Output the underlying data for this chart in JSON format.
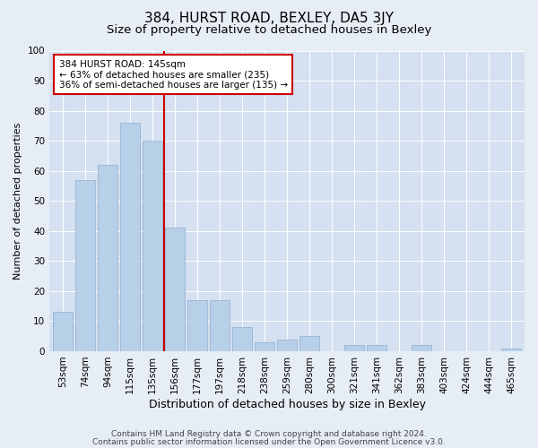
{
  "title": "384, HURST ROAD, BEXLEY, DA5 3JY",
  "subtitle": "Size of property relative to detached houses in Bexley",
  "xlabel": "Distribution of detached houses by size in Bexley",
  "ylabel": "Number of detached properties",
  "categories": [
    "53sqm",
    "74sqm",
    "94sqm",
    "115sqm",
    "135sqm",
    "156sqm",
    "177sqm",
    "197sqm",
    "218sqm",
    "238sqm",
    "259sqm",
    "280sqm",
    "300sqm",
    "321sqm",
    "341sqm",
    "362sqm",
    "383sqm",
    "403sqm",
    "424sqm",
    "444sqm",
    "465sqm"
  ],
  "values": [
    13,
    57,
    62,
    76,
    70,
    41,
    17,
    17,
    8,
    3,
    4,
    5,
    0,
    2,
    2,
    0,
    2,
    0,
    0,
    0,
    1
  ],
  "bar_color": "#b8cfe8",
  "bar_edge_color": "#8ab0d0",
  "vline_color": "#cc0000",
  "vline_x_idx": 4.5,
  "annotation_text": "384 HURST ROAD: 145sqm\n← 63% of detached houses are smaller (235)\n36% of semi-detached houses are larger (135) →",
  "annotation_box_facecolor": "white",
  "annotation_box_edgecolor": "#cc0000",
  "figure_facecolor": "#e6edf5",
  "axes_facecolor": "#d5e0f0",
  "grid_color": "#ffffff",
  "ylim": [
    0,
    100
  ],
  "yticks": [
    0,
    10,
    20,
    30,
    40,
    50,
    60,
    70,
    80,
    90,
    100
  ],
  "footer1": "Contains HM Land Registry data © Crown copyright and database right 2024.",
  "footer2": "Contains public sector information licensed under the Open Government Licence v3.0.",
  "title_fontsize": 11,
  "subtitle_fontsize": 9.5,
  "xlabel_fontsize": 9,
  "ylabel_fontsize": 8,
  "tick_fontsize": 7.5,
  "annot_fontsize": 7.5,
  "footer_fontsize": 6.5
}
